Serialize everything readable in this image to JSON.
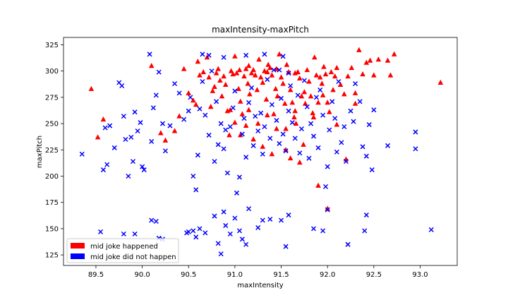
{
  "chart_data": {
    "type": "scatter",
    "title": "maxIntensity-maxPitch",
    "xlabel": "maxIntensity",
    "ylabel": "maxPitch",
    "xlim": [
      89.15,
      93.4
    ],
    "ylim": [
      115,
      332
    ],
    "xticks": [
      89.5,
      90.0,
      90.5,
      91.0,
      91.5,
      92.0,
      92.5,
      93.0
    ],
    "xtick_labels": [
      "89.5",
      "90.0",
      "90.5",
      "91.0",
      "91.5",
      "92.0",
      "92.5",
      "93.0"
    ],
    "yticks": [
      125,
      150,
      175,
      200,
      225,
      250,
      275,
      300,
      325
    ],
    "ytick_labels": [
      "125",
      "150",
      "175",
      "200",
      "225",
      "250",
      "275",
      "300",
      "325"
    ],
    "grid": false,
    "legend_position": "lower-left",
    "series": [
      {
        "name": "mid joke happened",
        "color": "#ff0000",
        "marker": "triangle",
        "points": [
          [
            89.45,
            283
          ],
          [
            89.52,
            237
          ],
          [
            89.58,
            254
          ],
          [
            90.1,
            305
          ],
          [
            90.2,
            241
          ],
          [
            90.25,
            234
          ],
          [
            90.35,
            243
          ],
          [
            90.4,
            257
          ],
          [
            90.45,
            302
          ],
          [
            90.5,
            279
          ],
          [
            90.55,
            272
          ],
          [
            90.58,
            268
          ],
          [
            90.6,
            309
          ],
          [
            90.62,
            296
          ],
          [
            90.66,
            299
          ],
          [
            90.7,
            313
          ],
          [
            90.72,
            294
          ],
          [
            90.74,
            266
          ],
          [
            90.76,
            281
          ],
          [
            90.78,
            285
          ],
          [
            90.8,
            298
          ],
          [
            90.82,
            302
          ],
          [
            90.84,
            291
          ],
          [
            90.86,
            276
          ],
          [
            90.88,
            295
          ],
          [
            90.9,
            287
          ],
          [
            90.92,
            262
          ],
          [
            90.94,
            239
          ],
          [
            90.96,
            300
          ],
          [
            90.98,
            297
          ],
          [
            91.0,
            314
          ],
          [
            91.02,
            298
          ],
          [
            91.04,
            283
          ],
          [
            91.06,
            271
          ],
          [
            91.08,
            259
          ],
          [
            91.1,
            295
          ],
          [
            91.12,
            302
          ],
          [
            91.14,
            288
          ],
          [
            91.16,
            278
          ],
          [
            91.18,
            298
          ],
          [
            91.2,
            301
          ],
          [
            91.22,
            296
          ],
          [
            91.24,
            282
          ],
          [
            91.26,
            311
          ],
          [
            91.28,
            294
          ],
          [
            91.3,
            289
          ],
          [
            91.32,
            300
          ],
          [
            91.34,
            273
          ],
          [
            91.36,
            306
          ],
          [
            91.38,
            303
          ],
          [
            91.4,
            296
          ],
          [
            91.42,
            259
          ],
          [
            91.44,
            283
          ],
          [
            91.46,
            276
          ],
          [
            91.48,
            316
          ],
          [
            91.5,
            294
          ],
          [
            91.52,
            288
          ],
          [
            91.54,
            269
          ],
          [
            91.56,
            306
          ],
          [
            91.58,
            299
          ],
          [
            91.6,
            282
          ],
          [
            91.62,
            270
          ],
          [
            91.64,
            256
          ],
          [
            91.66,
            250
          ],
          [
            91.68,
            299
          ],
          [
            91.7,
            293
          ],
          [
            91.72,
            276
          ],
          [
            91.74,
            230
          ],
          [
            91.76,
            269
          ],
          [
            91.78,
            301
          ],
          [
            91.8,
            290
          ],
          [
            91.82,
            276
          ],
          [
            91.84,
            260
          ],
          [
            91.86,
            313
          ],
          [
            91.88,
            296
          ],
          [
            91.9,
            270
          ],
          [
            91.92,
            294
          ],
          [
            91.94,
            288
          ],
          [
            91.96,
            304
          ],
          [
            91.98,
            297
          ],
          [
            92.0,
            270
          ],
          [
            92.02,
            261
          ],
          [
            92.04,
            299
          ],
          [
            92.06,
            282
          ],
          [
            92.08,
            295
          ],
          [
            92.1,
            303
          ],
          [
            92.14,
            287
          ],
          [
            92.18,
            278
          ],
          [
            92.22,
            295
          ],
          [
            92.26,
            303
          ],
          [
            92.3,
            279
          ],
          [
            92.34,
            320
          ],
          [
            92.38,
            297
          ],
          [
            92.42,
            308
          ],
          [
            92.46,
            310
          ],
          [
            92.5,
            296
          ],
          [
            92.55,
            311
          ],
          [
            92.65,
            310
          ],
          [
            92.68,
            296
          ],
          [
            92.72,
            316
          ],
          [
            93.22,
            289
          ],
          [
            91.6,
            217
          ],
          [
            91.9,
            191
          ],
          [
            92.0,
            169
          ],
          [
            91.06,
            239
          ],
          [
            91.12,
            248
          ],
          [
            91.3,
            228
          ],
          [
            91.45,
            245
          ],
          [
            91.7,
            213
          ],
          [
            92.2,
            216
          ],
          [
            91.0,
            251
          ],
          [
            91.15,
            263
          ],
          [
            91.25,
            250
          ],
          [
            91.35,
            258
          ],
          [
            91.55,
            245
          ],
          [
            91.65,
            262
          ],
          [
            91.75,
            280
          ],
          [
            91.85,
            256
          ],
          [
            91.95,
            277
          ],
          [
            91.4,
            221
          ],
          [
            91.2,
            235
          ],
          [
            90.95,
            263
          ],
          [
            91.55,
            225
          ],
          [
            92.1,
            249
          ],
          [
            92.3,
            269
          ],
          [
            91.05,
            301
          ],
          [
            91.15,
            305
          ],
          [
            91.35,
            299
          ],
          [
            91.45,
            302
          ],
          [
            91.65,
            298
          ]
        ]
      },
      {
        "name": "mid joke did not happen",
        "color": "#0000ff",
        "marker": "x",
        "points": [
          [
            89.35,
            221
          ],
          [
            89.58,
            206
          ],
          [
            89.6,
            246
          ],
          [
            89.62,
            211
          ],
          [
            89.65,
            248
          ],
          [
            89.7,
            227
          ],
          [
            89.75,
            289
          ],
          [
            89.78,
            286
          ],
          [
            89.8,
            257
          ],
          [
            89.82,
            235
          ],
          [
            89.85,
            200
          ],
          [
            89.88,
            237
          ],
          [
            89.9,
            214
          ],
          [
            89.92,
            261
          ],
          [
            89.95,
            243
          ],
          [
            89.98,
            251
          ],
          [
            90.0,
            209
          ],
          [
            90.02,
            206
          ],
          [
            90.08,
            316
          ],
          [
            90.1,
            233
          ],
          [
            90.12,
            265
          ],
          [
            90.15,
            277
          ],
          [
            90.18,
            299
          ],
          [
            90.22,
            250
          ],
          [
            90.25,
            224
          ],
          [
            90.3,
            248
          ],
          [
            90.35,
            288
          ],
          [
            90.4,
            279
          ],
          [
            90.45,
            254
          ],
          [
            90.5,
            262
          ],
          [
            90.52,
            275
          ],
          [
            90.55,
            200
          ],
          [
            90.58,
            187
          ],
          [
            90.6,
            220
          ],
          [
            90.62,
            264
          ],
          [
            90.65,
            290
          ],
          [
            90.68,
            258
          ],
          [
            90.72,
            239
          ],
          [
            90.75,
            300
          ],
          [
            90.78,
            214
          ],
          [
            90.8,
            271
          ],
          [
            90.82,
            230
          ],
          [
            90.85,
            250
          ],
          [
            90.88,
            226
          ],
          [
            90.9,
            244
          ],
          [
            90.92,
            203
          ],
          [
            90.95,
            247
          ],
          [
            90.98,
            265
          ],
          [
            91.0,
            281
          ],
          [
            91.02,
            184
          ],
          [
            91.05,
            199
          ],
          [
            91.08,
            240
          ],
          [
            91.1,
            255
          ],
          [
            91.12,
            218
          ],
          [
            91.15,
            270
          ],
          [
            91.18,
            284
          ],
          [
            91.2,
            229
          ],
          [
            91.22,
            257
          ],
          [
            91.25,
            243
          ],
          [
            91.28,
            260
          ],
          [
            91.3,
            221
          ],
          [
            91.32,
            247
          ],
          [
            91.35,
            292
          ],
          [
            91.38,
            236
          ],
          [
            91.4,
            268
          ],
          [
            91.42,
            301
          ],
          [
            91.45,
            253
          ],
          [
            91.48,
            231
          ],
          [
            91.5,
            274
          ],
          [
            91.52,
            240
          ],
          [
            91.55,
            224
          ],
          [
            91.58,
            262
          ],
          [
            91.6,
            286
          ],
          [
            91.62,
            251
          ],
          [
            91.65,
            236
          ],
          [
            91.68,
            277
          ],
          [
            91.7,
            222
          ],
          [
            91.72,
            245
          ],
          [
            91.75,
            291
          ],
          [
            91.78,
            266
          ],
          [
            91.8,
            217
          ],
          [
            91.82,
            250
          ],
          [
            91.85,
            238
          ],
          [
            91.88,
            275
          ],
          [
            91.9,
            227
          ],
          [
            91.92,
            282
          ],
          [
            91.95,
            258
          ],
          [
            91.98,
            190
          ],
          [
            92.0,
            209
          ],
          [
            92.02,
            244
          ],
          [
            92.05,
            271
          ],
          [
            92.08,
            255
          ],
          [
            92.1,
            223
          ],
          [
            92.12,
            290
          ],
          [
            92.15,
            232
          ],
          [
            92.18,
            247
          ],
          [
            92.2,
            214
          ],
          [
            92.22,
            135
          ],
          [
            92.25,
            262
          ],
          [
            92.28,
            252
          ],
          [
            92.3,
            288
          ],
          [
            92.35,
            271
          ],
          [
            92.38,
            228
          ],
          [
            92.42,
            219
          ],
          [
            92.45,
            249
          ],
          [
            92.48,
            206
          ],
          [
            92.5,
            263
          ],
          [
            92.65,
            229
          ],
          [
            92.95,
            242
          ],
          [
            92.95,
            226
          ],
          [
            93.12,
            149
          ],
          [
            89.55,
            147
          ],
          [
            89.8,
            145
          ],
          [
            89.92,
            145
          ],
          [
            90.1,
            158
          ],
          [
            90.15,
            157
          ],
          [
            90.18,
            141
          ],
          [
            90.22,
            140
          ],
          [
            90.48,
            146
          ],
          [
            90.5,
            147
          ],
          [
            90.55,
            148
          ],
          [
            90.58,
            142
          ],
          [
            90.62,
            150
          ],
          [
            90.68,
            146
          ],
          [
            90.78,
            162
          ],
          [
            90.82,
            136
          ],
          [
            90.85,
            126
          ],
          [
            90.88,
            166
          ],
          [
            90.9,
            153
          ],
          [
            90.95,
            145
          ],
          [
            91.0,
            160
          ],
          [
            91.05,
            148
          ],
          [
            91.08,
            140
          ],
          [
            91.12,
            135
          ],
          [
            91.15,
            169
          ],
          [
            91.25,
            151
          ],
          [
            91.3,
            158
          ],
          [
            91.38,
            159
          ],
          [
            91.5,
            158
          ],
          [
            91.55,
            133
          ],
          [
            91.58,
            163
          ],
          [
            91.85,
            150
          ],
          [
            91.95,
            148
          ],
          [
            92.0,
            168
          ],
          [
            92.42,
            163
          ],
          [
            92.4,
            148
          ],
          [
            92.22,
            135
          ],
          [
            90.65,
            316
          ],
          [
            90.72,
            315
          ],
          [
            90.88,
            313
          ],
          [
            91.12,
            315
          ],
          [
            91.32,
            316
          ],
          [
            91.52,
            314
          ],
          [
            91.48,
            301
          ],
          [
            91.58,
            298
          ]
        ]
      }
    ]
  }
}
